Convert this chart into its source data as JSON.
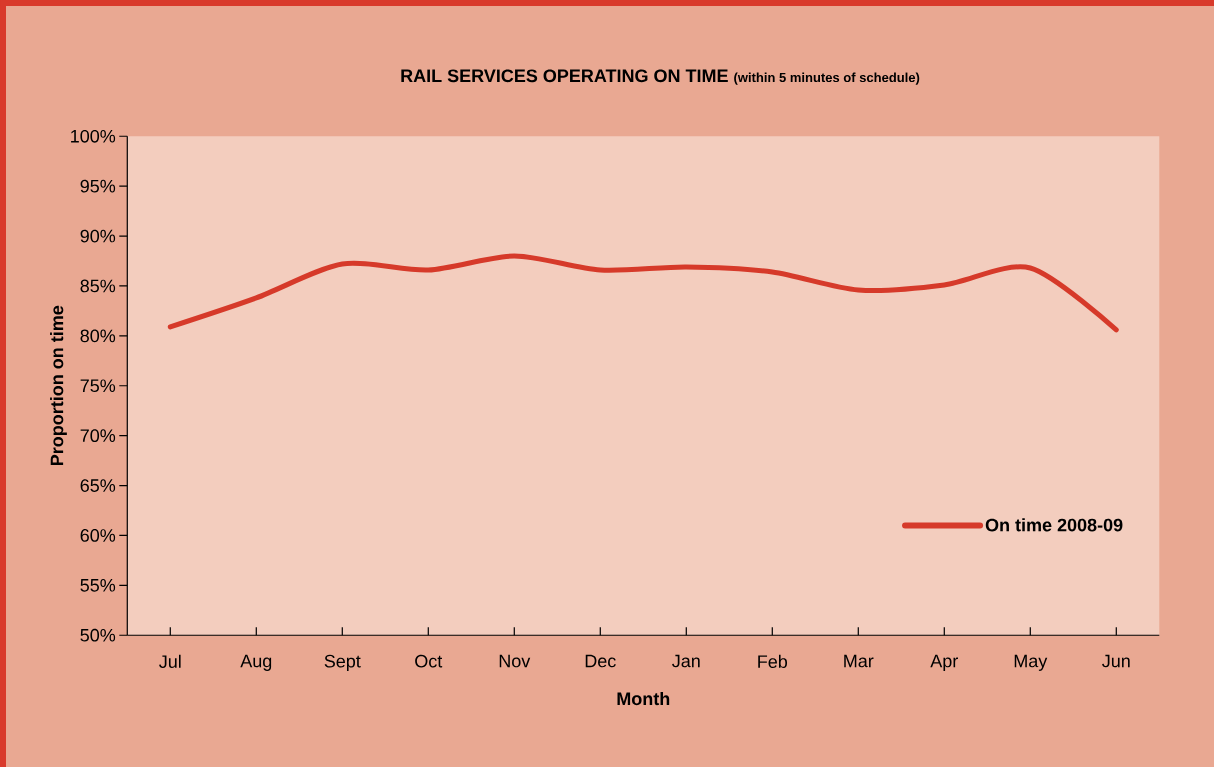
{
  "chart_data": {
    "type": "line",
    "title": "RAIL SERVICES OPERATING ON TIME",
    "subtitle": "(within 5 minutes of schedule)",
    "xlabel": "Month",
    "ylabel": "Proportion on time",
    "categories": [
      "Jul",
      "Aug",
      "Sept",
      "Oct",
      "Nov",
      "Dec",
      "Jan",
      "Feb",
      "Mar",
      "Apr",
      "May",
      "Jun"
    ],
    "series": [
      {
        "name": "On time 2008-09",
        "color": "#d63a2a",
        "values": [
          80.9,
          83.8,
          87.2,
          86.6,
          88.0,
          86.6,
          86.9,
          86.4,
          84.6,
          85.1,
          86.8,
          80.6
        ]
      }
    ],
    "ylim": [
      50,
      100
    ],
    "yticks": [
      {
        "value": 50,
        "label": "50%"
      },
      {
        "value": 55,
        "label": "55%"
      },
      {
        "value": 60,
        "label": "60%"
      },
      {
        "value": 65,
        "label": "65%"
      },
      {
        "value": 70,
        "label": "70%"
      },
      {
        "value": 75,
        "label": "75%"
      },
      {
        "value": 80,
        "label": "80%"
      },
      {
        "value": 85,
        "label": "85%"
      },
      {
        "value": 90,
        "label": "90%"
      },
      {
        "value": 95,
        "label": "95%"
      },
      {
        "value": 100,
        "label": "100%"
      }
    ],
    "legend": "right",
    "grid": false,
    "marker": "none",
    "line_style": "solid"
  }
}
